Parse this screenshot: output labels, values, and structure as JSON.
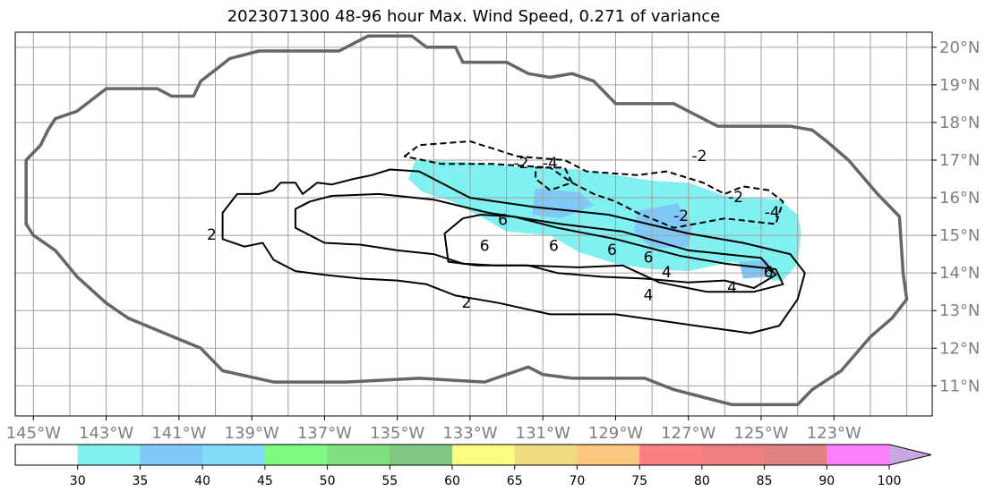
{
  "chart_data": {
    "type": "contour-map",
    "title": "2023071300 48-96 hour Max. Wind Speed, 0.271 of variance",
    "x_axis": {
      "range_deg_lon": [
        -145.5,
        -120.3
      ],
      "tick_values": [
        -145,
        -143,
        -141,
        -139,
        -137,
        -135,
        -133,
        -131,
        -129,
        -127,
        -125,
        -123
      ],
      "tick_labels": [
        "145°W",
        "143°W",
        "141°W",
        "139°W",
        "137°W",
        "135°W",
        "133°W",
        "131°W",
        "129°W",
        "127°W",
        "125°W",
        "123°W"
      ]
    },
    "y_axis": {
      "range_deg_lat": [
        10.2,
        20.4
      ],
      "tick_values": [
        11,
        12,
        13,
        14,
        15,
        16,
        17,
        18,
        19,
        20
      ],
      "tick_labels": [
        "11°N",
        "12°N",
        "13°N",
        "14°N",
        "15°N",
        "16°N",
        "17°N",
        "18°N",
        "19°N",
        "20°N"
      ],
      "position": "right"
    },
    "grid": true,
    "grid_spacing_deg": 1,
    "colorbar": {
      "orientation": "horizontal",
      "boundaries": [
        30,
        35,
        40,
        45,
        50,
        55,
        60,
        65,
        70,
        75,
        80,
        85,
        90,
        100
      ],
      "labels": [
        "30",
        "35",
        "40",
        "45",
        "50",
        "55",
        "60",
        "65",
        "70",
        "75",
        "80",
        "85",
        "90",
        "100"
      ],
      "colors": [
        "#ffffff",
        "#80f0f0",
        "#80c8f8",
        "#80dcfa",
        "#80fa80",
        "#80e080",
        "#80c880",
        "#fcfc80",
        "#f0dc80",
        "#fcc880",
        "#fc8080",
        "#f08080",
        "#e08080",
        "#fc80fc",
        "#c8a8e0"
      ],
      "extend": "max"
    },
    "outline_color": "#666666",
    "outline": [
      [
        -145.2,
        15.8
      ],
      [
        -145.2,
        17
      ],
      [
        -144.8,
        17.4
      ],
      [
        -144.6,
        17.8
      ],
      [
        -144.4,
        18.1
      ],
      [
        -143.8,
        18.3
      ],
      [
        -143.4,
        18.6
      ],
      [
        -143,
        18.9
      ],
      [
        -141.6,
        18.9
      ],
      [
        -141.2,
        18.7
      ],
      [
        -140.6,
        18.7
      ],
      [
        -140.4,
        19.1
      ],
      [
        -140,
        19.4
      ],
      [
        -139.6,
        19.7
      ],
      [
        -138.8,
        19.9
      ],
      [
        -136.6,
        19.9
      ],
      [
        -136.2,
        20.1
      ],
      [
        -135.8,
        20.3
      ],
      [
        -134.6,
        20.3
      ],
      [
        -134.2,
        20
      ],
      [
        -133.4,
        20
      ],
      [
        -133.2,
        19.6
      ],
      [
        -132,
        19.6
      ],
      [
        -131.4,
        19.3
      ],
      [
        -130.8,
        19.2
      ],
      [
        -130.2,
        19.3
      ],
      [
        -129.6,
        19.1
      ],
      [
        -129,
        18.5
      ],
      [
        -127.4,
        18.5
      ],
      [
        -126.8,
        18.2
      ],
      [
        -126.2,
        17.9
      ],
      [
        -124.2,
        17.9
      ],
      [
        -123.6,
        17.8
      ],
      [
        -123.2,
        17.5
      ],
      [
        -122.6,
        17
      ],
      [
        -121.8,
        16.1
      ],
      [
        -121.2,
        15.5
      ],
      [
        -121.1,
        14
      ],
      [
        -121,
        13.3
      ],
      [
        -121.4,
        12.8
      ],
      [
        -122,
        12.3
      ],
      [
        -122.8,
        11.4
      ],
      [
        -123.6,
        10.9
      ],
      [
        -124,
        10.5
      ],
      [
        -125.8,
        10.5
      ],
      [
        -126.6,
        10.7
      ],
      [
        -127.4,
        10.9
      ],
      [
        -128.2,
        11.2
      ],
      [
        -129.4,
        11.2
      ],
      [
        -130.2,
        11.2
      ],
      [
        -131,
        11.3
      ],
      [
        -131.4,
        11.5
      ],
      [
        -132.6,
        11.1
      ],
      [
        -134.4,
        11.2
      ],
      [
        -136.4,
        11.1
      ],
      [
        -138.4,
        11.1
      ],
      [
        -139.8,
        11.4
      ],
      [
        -140.4,
        12
      ],
      [
        -141.4,
        12.4
      ],
      [
        -142.4,
        12.8
      ],
      [
        -143,
        13.2
      ],
      [
        -143.8,
        13.9
      ],
      [
        -144.4,
        14.6
      ],
      [
        -145,
        15
      ],
      [
        -145.2,
        15.3
      ],
      [
        -145.2,
        15.8
      ]
    ],
    "shaded_regions": [
      {
        "level": "30-35",
        "color": "#80f0f0",
        "polygons": [
          [
            [
              -134.5,
              17
            ],
            [
              -133.2,
              16.95
            ],
            [
              -132,
              16.85
            ],
            [
              -130,
              16.75
            ],
            [
              -128,
              16.45
            ],
            [
              -127,
              16.4
            ],
            [
              -126,
              16.05
            ],
            [
              -124.5,
              15.95
            ],
            [
              -124,
              15.55
            ],
            [
              -123.9,
              15.1
            ],
            [
              -124,
              14.25
            ],
            [
              -124.4,
              13.8
            ],
            [
              -124.7,
              13.8
            ],
            [
              -125,
              14.1
            ],
            [
              -125.8,
              14.3
            ],
            [
              -127,
              14.05
            ],
            [
              -128,
              14.1
            ],
            [
              -129,
              14.25
            ],
            [
              -130,
              14.55
            ],
            [
              -130.8,
              15
            ],
            [
              -132,
              15.1
            ],
            [
              -132.8,
              15.55
            ],
            [
              -133.5,
              15.9
            ],
            [
              -134.3,
              16.15
            ],
            [
              -134.7,
              16.5
            ],
            [
              -134.5,
              17
            ]
          ]
        ]
      },
      {
        "level": "35-40",
        "color": "#80c8f8",
        "polygons": [
          [
            [
              -131.2,
              16.25
            ],
            [
              -130,
              16.15
            ],
            [
              -129.6,
              15.8
            ],
            [
              -130.5,
              15.45
            ],
            [
              -131.3,
              15.55
            ],
            [
              -131.2,
              16.25
            ]
          ],
          [
            [
              -128.4,
              15.65
            ],
            [
              -127.3,
              15.85
            ],
            [
              -126.9,
              15.3
            ],
            [
              -127,
              14.7
            ],
            [
              -128,
              14.65
            ],
            [
              -128.5,
              15.1
            ],
            [
              -128.4,
              15.65
            ]
          ],
          [
            [
              -125.6,
              14.3
            ],
            [
              -124.8,
              14.35
            ],
            [
              -124.7,
              13.9
            ],
            [
              -125.5,
              13.85
            ],
            [
              -125.6,
              14.3
            ]
          ]
        ]
      }
    ],
    "contours": [
      {
        "level": 2,
        "style": "solid",
        "label": "2",
        "points": [
          [
            -139.8,
            15.2
          ],
          [
            -139.8,
            15.6
          ],
          [
            -139.4,
            16.1
          ],
          [
            -138.8,
            16.1
          ],
          [
            -138.4,
            16.2
          ],
          [
            -138.2,
            16.4
          ],
          [
            -137.8,
            16.4
          ],
          [
            -137.6,
            16.1
          ],
          [
            -137.2,
            16.4
          ],
          [
            -136.8,
            16.35
          ],
          [
            -136.2,
            16.5
          ],
          [
            -135.7,
            16.6
          ],
          [
            -135.2,
            16.75
          ],
          [
            -134.4,
            16.7
          ],
          [
            -133,
            16
          ],
          [
            -131.2,
            15.75
          ],
          [
            -129.2,
            15.55
          ],
          [
            -127,
            15.05
          ],
          [
            -125.5,
            14.8
          ],
          [
            -124.2,
            14.5
          ],
          [
            -123.8,
            14
          ],
          [
            -124,
            13.3
          ],
          [
            -124.5,
            12.6
          ],
          [
            -125.3,
            12.4
          ],
          [
            -126.8,
            12.6
          ],
          [
            -129,
            12.9
          ],
          [
            -130.8,
            12.9
          ],
          [
            -132.2,
            13.2
          ],
          [
            -133.4,
            13.4
          ],
          [
            -134.2,
            13.7
          ],
          [
            -135,
            13.8
          ],
          [
            -136,
            13.85
          ],
          [
            -137,
            13.95
          ],
          [
            -137.8,
            14.05
          ],
          [
            -138.4,
            14.35
          ],
          [
            -138.7,
            14.8
          ],
          [
            -139.2,
            14.7
          ],
          [
            -139.8,
            14.9
          ],
          [
            -139.8,
            15.2
          ]
        ],
        "label_at": [
          -133.1,
          13.2
        ]
      },
      {
        "level": 4,
        "style": "solid",
        "label": "4",
        "points": [
          [
            -137.8,
            15.7
          ],
          [
            -137.4,
            15.9
          ],
          [
            -136.8,
            16.05
          ],
          [
            -135.5,
            16.1
          ],
          [
            -134,
            15.95
          ],
          [
            -132.5,
            15.6
          ],
          [
            -130.5,
            15.3
          ],
          [
            -128.8,
            15.1
          ],
          [
            -127,
            14.6
          ],
          [
            -125,
            14.4
          ],
          [
            -124.6,
            13.95
          ],
          [
            -125.2,
            13.6
          ],
          [
            -126,
            13.8
          ],
          [
            -127,
            13.75
          ],
          [
            -128.2,
            13.85
          ],
          [
            -129.4,
            13.9
          ],
          [
            -130.6,
            14
          ],
          [
            -131.4,
            14.2
          ],
          [
            -132.3,
            14.2
          ],
          [
            -133.2,
            14.25
          ],
          [
            -134,
            14.5
          ],
          [
            -135,
            14.6
          ],
          [
            -136,
            14.75
          ],
          [
            -137,
            14.8
          ],
          [
            -137.8,
            15.2
          ],
          [
            -137.8,
            15.7
          ]
        ],
        "label_at": [
          -128.1,
          13.7
        ]
      },
      {
        "level": 6,
        "style": "solid",
        "label": "6",
        "points": [
          [
            -133.7,
            15.05
          ],
          [
            -133.2,
            15.45
          ],
          [
            -132.7,
            15.55
          ],
          [
            -131.8,
            15.5
          ],
          [
            -130.6,
            15.2
          ],
          [
            -129,
            14.9
          ],
          [
            -127.2,
            14.45
          ],
          [
            -126,
            14.25
          ],
          [
            -124.6,
            14.1
          ],
          [
            -124.4,
            13.7
          ],
          [
            -125.2,
            13.5
          ],
          [
            -126.5,
            13.5
          ],
          [
            -127.8,
            13.75
          ],
          [
            -128.8,
            14.2
          ],
          [
            -130,
            14.15
          ],
          [
            -131.5,
            14.2
          ],
          [
            -132.8,
            14.2
          ],
          [
            -133.6,
            14.3
          ],
          [
            -133.7,
            15.05
          ]
        ],
        "label_at": [
          -132.1,
          15.4
        ]
      },
      {
        "level": -2,
        "style": "dashed",
        "label": "-2",
        "points": [
          [
            -134.8,
            17.1
          ],
          [
            -134.4,
            17.4
          ],
          [
            -133,
            17.5
          ],
          [
            -131.7,
            17.1
          ],
          [
            -130.4,
            17
          ],
          [
            -129.8,
            16.7
          ],
          [
            -128.4,
            16.6
          ],
          [
            -127.6,
            16.7
          ],
          [
            -126.6,
            16.4
          ],
          [
            -126,
            16.1
          ],
          [
            -125.5,
            16.3
          ],
          [
            -124.8,
            16.2
          ],
          [
            -124.4,
            15.9
          ],
          [
            -124.6,
            15.3
          ],
          [
            -126,
            15.45
          ],
          [
            -127.4,
            15.2
          ],
          [
            -128.4,
            15.6
          ],
          [
            -129,
            15.9
          ],
          [
            -129.6,
            16.1
          ],
          [
            -130.2,
            16.4
          ],
          [
            -130.8,
            16.8
          ],
          [
            -132.4,
            16.9
          ],
          [
            -133.8,
            16.9
          ],
          [
            -134.8,
            17.1
          ]
        ],
        "label_at": [
          -131.6,
          16.9
        ]
      },
      {
        "level": -4,
        "style": "dashed",
        "label": "-4",
        "points": [
          [
            -131.2,
            16.8
          ],
          [
            -130.4,
            16.8
          ],
          [
            -130.2,
            16.4
          ],
          [
            -130.8,
            16.2
          ],
          [
            -131.2,
            16.5
          ],
          [
            -131.2,
            16.8
          ]
        ],
        "label_at": [
          -130.8,
          16.9
        ]
      }
    ],
    "contour_labels": [
      {
        "text": "2",
        "at": [
          -133.1,
          13.2
        ]
      },
      {
        "text": "2",
        "at": [
          -140.1,
          15.0
        ]
      },
      {
        "text": "4",
        "at": [
          -128.1,
          13.4
        ]
      },
      {
        "text": "4",
        "at": [
          -127.6,
          14.0
        ]
      },
      {
        "text": "4",
        "at": [
          -125.8,
          13.6
        ]
      },
      {
        "text": "6",
        "at": [
          -132.1,
          15.4
        ]
      },
      {
        "text": "6",
        "at": [
          -132.6,
          14.7
        ]
      },
      {
        "text": "6",
        "at": [
          -130.7,
          14.7
        ]
      },
      {
        "text": "6",
        "at": [
          -129.1,
          14.6
        ]
      },
      {
        "text": "6",
        "at": [
          -128.1,
          14.4
        ]
      },
      {
        "text": "6",
        "at": [
          -124.8,
          14.0
        ]
      },
      {
        "text": "-2",
        "at": [
          -131.6,
          16.9
        ]
      },
      {
        "text": "-2",
        "at": [
          -127.2,
          15.5
        ]
      },
      {
        "text": "-2",
        "at": [
          -126.7,
          17.1
        ]
      },
      {
        "text": "-2",
        "at": [
          -125.7,
          16.0
        ]
      },
      {
        "text": "-4",
        "at": [
          -130.8,
          16.9
        ]
      },
      {
        "text": "-4",
        "at": [
          -124.7,
          15.6
        ]
      }
    ]
  }
}
